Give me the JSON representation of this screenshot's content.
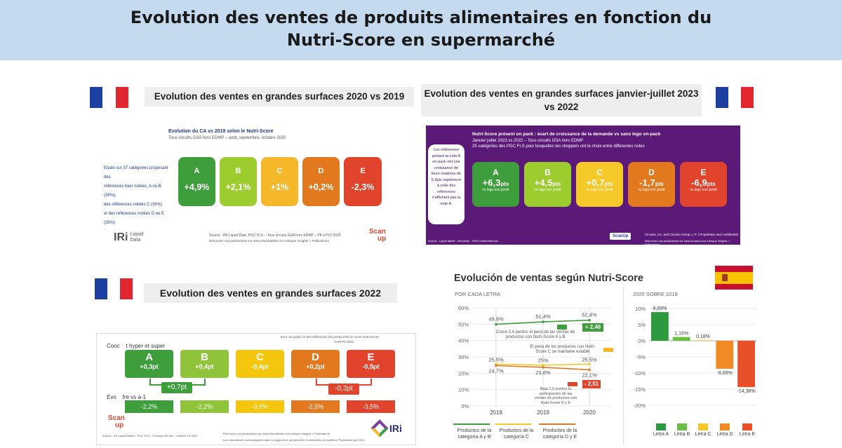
{
  "header": {
    "title_line1": "Evolution des ventes de produits alimentaires en fonction du",
    "title_line2": "Nutri-Score en supermarché"
  },
  "colors": {
    "A": "#3f9e3c",
    "B": "#9ccc2d",
    "C": "#f5b82a",
    "D": "#e2791e",
    "E": "#e0442c",
    "purple": "#5b1a78",
    "header_bg": "#c5d9ef"
  },
  "q1": {
    "title": "Evolution des ventes en grandes surfaces 2020 vs 2019",
    "chart_title": "Evolution du CA vs 2019 selon le Nutri-Score",
    "chart_subtitle": "Tous circuits GSA hors EDMP – août, septembre, octobre 2020",
    "note_lines": [
      "Etude sur 37 catégories proposant des",
      "références bien notées, A ou B (38%),",
      "des références notées C (36%)",
      "et des références notées D ou E (26%)"
    ],
    "source": "Source : IRI Liquid Data, PGC FLS – Tous circuits GSA hors EDMP – P8 à P10 2020",
    "source2": "Retrouvez nos publications sur www.iriworldwide.com rubrique Insights > Publications",
    "logo": "IRi",
    "logo_sub1": "Liquid",
    "logo_sub2": "Data",
    "scanup1": "Scan",
    "scanup2": "up",
    "tiles": [
      {
        "letter": "A",
        "value": "+4,9%"
      },
      {
        "letter": "B",
        "value": "+2,1%"
      },
      {
        "letter": "C",
        "value": "+1%"
      },
      {
        "letter": "D",
        "value": "+0,2%"
      },
      {
        "letter": "E",
        "value": "-2,3%"
      }
    ]
  },
  "q2": {
    "title": "Evolution des ventes en grandes surfaces janvier-juillet 2023 vs 2022",
    "headline": "Nutri-Score présent on pack : écart de croissance de la demande vs sans logo on-pack",
    "sub1": "Janvier juillet 2023 vs 2022 – Tous circuits GSA hors EDMP",
    "sub2": "25 catégories des PGC FLS pour lesquelles les shoppers ont le choix entre différentes notes",
    "bubble": "Les références portant la note A on-pack ont une croissance de leurs rotations de 6,3pts supérieure à celle des références n'affichant pas la note A.",
    "tile_sub": "vs logo non porté",
    "footer_left": "Source : Liquid data® - Demande : VMH Unité/référence",
    "footer_right": "Circana, Inc. and Circana Group, L.P. | Proprietary and confidential",
    "footer_right2": "Retrouvez nos publications sur www.circana.com rubrique Insights > Publications",
    "logo": "ScanUp",
    "tiles": [
      {
        "letter": "A",
        "value": "+6,3",
        "unit": "pts"
      },
      {
        "letter": "B",
        "value": "+4,5",
        "unit": "pts"
      },
      {
        "letter": "C",
        "value": "+0,7",
        "unit": "pts"
      },
      {
        "letter": "D",
        "value": "-1,7",
        "unit": "pts"
      },
      {
        "letter": "E",
        "value": "-6,9",
        "unit": "pts"
      }
    ]
  },
  "q3": {
    "title": "Evolution des ventes en grandes surfaces 2022",
    "top_note1": "Evol. du poids CA des références (en point) selon le score Nutri-Score",
    "top_note2": "CAM P4 2022",
    "row1_label": "Conc    t hyper et super",
    "row2_label": "Evo    fre vs a-1",
    "tiles": [
      {
        "letter": "A",
        "value": "+0,3pt",
        "evol": "-2,2%"
      },
      {
        "letter": "B",
        "value": "+0,4pt",
        "evol": "-2,2%"
      },
      {
        "letter": "C",
        "value": "-0,4pt",
        "evol": "-3,6%"
      },
      {
        "letter": "D",
        "value": "+0,2pt",
        "evol": "-2,5%"
      },
      {
        "letter": "E",
        "value": "-0,5pt",
        "evol": "-3,5%"
      }
    ],
    "ab_total": "+0,7pt",
    "de_total": "-0,3pt",
    "source": "Source : IRI Liquid Data® – PGC FLS – Concept HM SM – CAM fin P4 2022",
    "source2": "Retrouvez nos publications sur www.iriworldwide.com rubrique Insights > Publications",
    "source3": "Les informations communiquées dans ce support ne peuvent être ni amendées ni modifiées. Publication juin 2022",
    "scanup1": "Scan",
    "scanup2": "up",
    "logo": "IRi"
  },
  "q4": {
    "title": "Evolución de ventas según Nutri-Score",
    "left_sub": "POR CADA LETRA",
    "right_sub": "2020 SOBRE 2018",
    "note_ab": "Crece 2,4 puntos el peso de las ventas de productos con Nutri-Score A y B",
    "note_c": "El peso de los productos con Nutri-Score C se mantiene estable",
    "note_de": "Baja 2,5 puntos la participación de las ventas de productos con Nutri-Score D y E",
    "delta_ab": "+ 2,46",
    "delta_de": "- 2,51",
    "legend": [
      "Productos de la categoría A y B",
      "Productos de la categoría C",
      "Productos de la categoría D y E"
    ],
    "bar_legend": [
      "Letra A",
      "Letra B",
      "Letra C",
      "Letra D",
      "Letra E"
    ]
  },
  "chart_data": [
    {
      "type": "line",
      "title": "Evolución de ventas según Nutri-Score",
      "subtitle": "POR CADA LETRA",
      "x": [
        "2018",
        "2019",
        "2020"
      ],
      "ylim": [
        0,
        60
      ],
      "yticks": [
        "0%",
        "10%",
        "20%",
        "30%",
        "40%",
        "50%",
        "60%"
      ],
      "series": [
        {
          "name": "Productos de la categoría A y B",
          "values": [
            49.9,
            51.4,
            52.4
          ],
          "labels": [
            "49,9%",
            "51,4%",
            "52,4%"
          ]
        },
        {
          "name": "Productos de la categoría C",
          "values": [
            25.5,
            25.0,
            25.5
          ],
          "labels": [
            "25,5%",
            "25%",
            "25,5%"
          ]
        },
        {
          "name": "Productos de la categoría D y E",
          "values": [
            24.7,
            23.6,
            22.1
          ],
          "labels": [
            "24,7%",
            "23,6%",
            "22,1%"
          ]
        }
      ]
    },
    {
      "type": "bar",
      "subtitle": "2020 SOBRE 2018",
      "categories": [
        "Letra A",
        "Letra B",
        "Letra C",
        "Letra D",
        "Letra E"
      ],
      "values": [
        8.89,
        1.16,
        0.18,
        -8.69,
        -14.38
      ],
      "labels": [
        "8,89%",
        "1,16%",
        "0,18%",
        "-8,69%",
        "-14,38%"
      ],
      "ylim": [
        -20,
        10
      ],
      "yticks": [
        "-20%",
        "-15%",
        "-10%",
        "-5%",
        "0%",
        "5%",
        "10%"
      ]
    }
  ]
}
